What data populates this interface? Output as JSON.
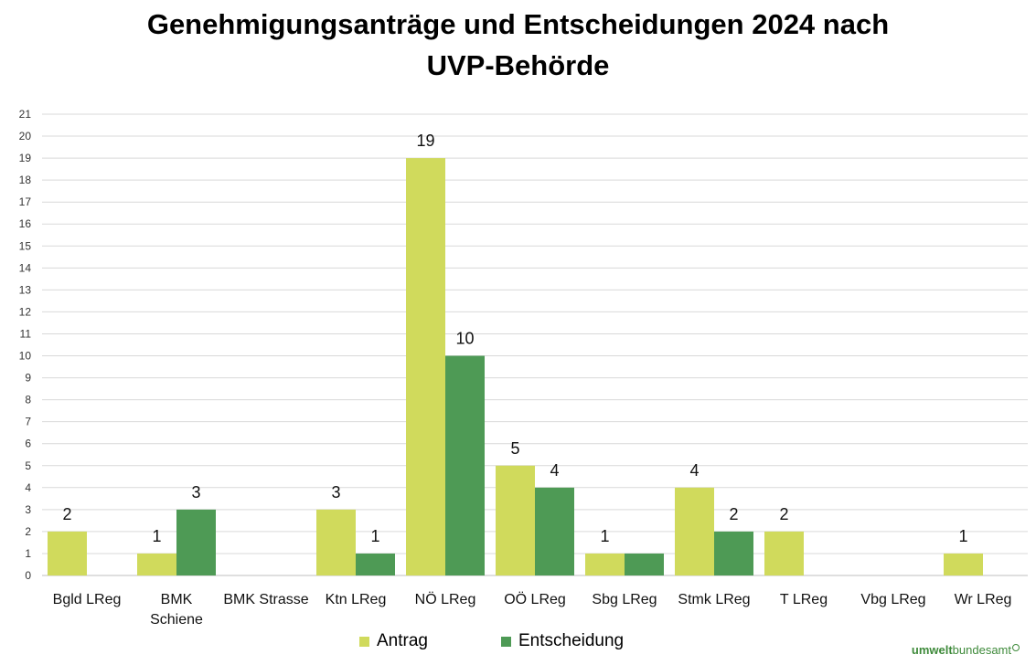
{
  "chart_data": {
    "type": "bar",
    "title_line1": "Genehmigungsanträge und Entscheidungen 2024 nach",
    "title_line2": "UVP-Behörde",
    "categories": [
      [
        "Bgld LReg"
      ],
      [
        "BMK",
        "Schiene"
      ],
      [
        "BMK Strasse"
      ],
      [
        "Ktn LReg"
      ],
      [
        "NÖ LReg"
      ],
      [
        "OÖ LReg"
      ],
      [
        "Sbg LReg"
      ],
      [
        "Stmk LReg"
      ],
      [
        "T LReg"
      ],
      [
        "Vbg LReg"
      ],
      [
        "Wr LReg"
      ]
    ],
    "series": [
      {
        "name": "Antrag",
        "color": "#d0da5c",
        "values": [
          2,
          1,
          0,
          3,
          19,
          5,
          1,
          4,
          2,
          0,
          1
        ],
        "labels": [
          "2",
          "1",
          "",
          "3",
          "19",
          "5",
          "1",
          "4",
          "2",
          "",
          "1"
        ]
      },
      {
        "name": "Entscheidung",
        "color": "#4e9a55",
        "values": [
          0,
          3,
          0,
          1,
          10,
          4,
          1,
          2,
          0,
          0,
          0
        ],
        "labels": [
          "",
          "3",
          "",
          "1",
          "10",
          "4",
          "",
          "2",
          "",
          "",
          ""
        ]
      }
    ],
    "ylim": [
      0,
      21
    ],
    "yticks": [
      0,
      1,
      2,
      3,
      4,
      5,
      6,
      7,
      8,
      9,
      10,
      11,
      12,
      13,
      14,
      15,
      16,
      17,
      18,
      19,
      20,
      21
    ],
    "grid": true,
    "legend": "bottom-center"
  },
  "logo": {
    "part1": "umwelt",
    "part2": "bundesamt"
  }
}
